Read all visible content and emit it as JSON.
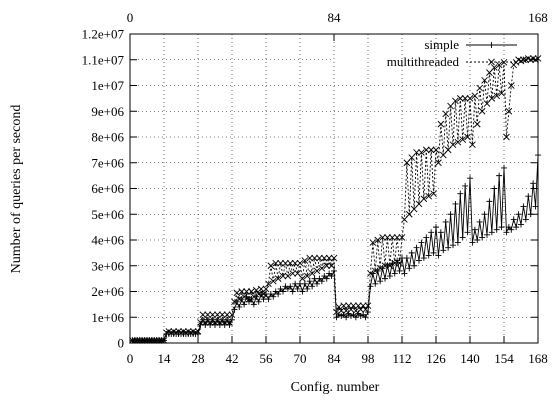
{
  "chart_data": {
    "type": "line",
    "xlabel": "Config. number",
    "ylabel": "Number of queries per second",
    "xlim": [
      0,
      168
    ],
    "ylim": [
      0,
      12000000
    ],
    "x_ticks": [
      0,
      14,
      28,
      42,
      56,
      70,
      84,
      98,
      112,
      126,
      140,
      154,
      168
    ],
    "x2_ticks": [
      0,
      84,
      168
    ],
    "y_ticks": [
      0,
      1000000,
      2000000,
      3000000,
      4000000,
      5000000,
      6000000,
      7000000,
      8000000,
      9000000,
      10000000,
      11000000,
      12000000
    ],
    "y_tick_labels": [
      "0",
      "1e+06",
      "2e+06",
      "3e+06",
      "4e+06",
      "5e+06",
      "6e+06",
      "7e+06",
      "8e+06",
      "9e+06",
      "1e+07",
      "1.1e+07",
      "1.2e+07"
    ],
    "grid": true,
    "legend_position": "top-right",
    "series": [
      {
        "name": "simple",
        "line_style": "solid",
        "marker": "plus",
        "values": [
          100000,
          100000,
          100000,
          100000,
          100000,
          100000,
          100000,
          100000,
          100000,
          100000,
          100000,
          100000,
          100000,
          100000,
          350000,
          350000,
          350000,
          350000,
          350000,
          350000,
          350000,
          350000,
          350000,
          350000,
          350000,
          350000,
          350000,
          350000,
          700000,
          900000,
          700000,
          900000,
          700000,
          900000,
          700000,
          900000,
          700000,
          900000,
          700000,
          900000,
          700000,
          900000,
          1300000,
          1600000,
          1400000,
          1700000,
          1500000,
          1800000,
          1600000,
          1700000,
          1500000,
          1800000,
          1600000,
          1900000,
          1700000,
          1900000,
          1700000,
          1900000,
          1800000,
          2000000,
          1900000,
          2100000,
          2000000,
          2200000,
          2100000,
          2200000,
          2000000,
          2300000,
          2100000,
          2300000,
          2000000,
          2300000,
          2100000,
          2400000,
          2200000,
          2500000,
          2300000,
          2500000,
          2400000,
          2600000,
          2500000,
          2700000,
          2600000,
          2800000,
          1000000,
          1100000,
          1050000,
          1100000,
          1000000,
          1150000,
          1050000,
          1100000,
          1000000,
          1150000,
          1050000,
          1100000,
          1000000,
          1200000,
          2200000,
          2700000,
          2300000,
          2800000,
          2400000,
          2900000,
          2500000,
          3000000,
          2600000,
          3100000,
          2700000,
          3200000,
          2800000,
          3300000,
          2700000,
          3300000,
          2900000,
          3500000,
          3000000,
          3700000,
          3200000,
          3900000,
          3300000,
          4100000,
          3400000,
          4300000,
          3500000,
          4500000,
          3400000,
          4300000,
          3600000,
          4700000,
          3700000,
          5000000,
          3800000,
          5400000,
          3900000,
          5800000,
          4100000,
          6100000,
          4300000,
          6400000,
          3900000,
          4400000,
          4000000,
          4700000,
          4100000,
          5000000,
          4200000,
          5500000,
          4300000,
          6000000,
          4400000,
          6500000,
          4500000,
          6800000,
          4300000,
          4500000,
          4400000,
          4800000,
          4500000,
          5000000,
          4600000,
          5300000,
          4800000,
          5700000,
          5000000,
          6200000,
          5300000,
          7300000
        ]
      },
      {
        "name": "multithreaded",
        "line_style": "dotted",
        "marker": "cross",
        "values": [
          100000,
          100000,
          100000,
          100000,
          100000,
          100000,
          100000,
          100000,
          100000,
          100000,
          100000,
          100000,
          100000,
          100000,
          400000,
          450000,
          400000,
          450000,
          400000,
          450000,
          400000,
          450000,
          400000,
          450000,
          400000,
          450000,
          400000,
          450000,
          800000,
          1100000,
          800000,
          1100000,
          800000,
          1100000,
          800000,
          1100000,
          800000,
          1100000,
          800000,
          1100000,
          800000,
          1100000,
          1600000,
          1950000,
          1700000,
          2000000,
          1800000,
          2000000,
          1700000,
          2000000,
          1800000,
          2050000,
          1900000,
          2100000,
          1900000,
          2100000,
          2300000,
          3000000,
          2400000,
          3100000,
          2500000,
          3100000,
          2600000,
          3100000,
          2600000,
          3100000,
          2700000,
          3100000,
          2700000,
          3100000,
          2500000,
          3200000,
          2600000,
          3300000,
          2700000,
          3300000,
          2800000,
          3300000,
          2900000,
          3300000,
          3000000,
          3300000,
          3000000,
          3300000,
          1200000,
          1400000,
          1250000,
          1450000,
          1250000,
          1450000,
          1300000,
          1450000,
          1250000,
          1450000,
          1300000,
          1450000,
          1300000,
          1450000,
          2700000,
          3900000,
          2800000,
          4000000,
          2900000,
          4100000,
          3000000,
          4100000,
          3000000,
          4100000,
          3100000,
          4100000,
          3100000,
          4100000,
          4800000,
          7000000,
          5000000,
          7200000,
          5200000,
          7400000,
          5400000,
          7400000,
          5600000,
          7500000,
          5700000,
          7500000,
          5800000,
          7500000,
          7000000,
          8500000,
          7300000,
          8900000,
          7500000,
          9200000,
          7700000,
          9400000,
          7800000,
          9500000,
          7900000,
          9500000,
          8000000,
          9500000,
          7700000,
          9600000,
          8500000,
          9900000,
          9000000,
          10200000,
          9300000,
          10500000,
          9500000,
          10700000,
          9600000,
          10800000,
          9700000,
          10900000,
          8000000,
          9000000,
          10000000,
          10800000,
          10900000,
          11000000,
          10950000,
          11000000,
          11000000,
          11050000,
          11000000,
          11050000,
          11000000,
          11050000
        ]
      }
    ]
  }
}
